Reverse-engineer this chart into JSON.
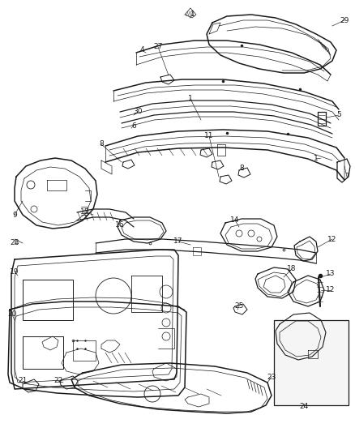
{
  "background_color": "#ffffff",
  "fig_width": 4.38,
  "fig_height": 5.33,
  "dpi": 100,
  "line_color": "#1a1a1a",
  "label_fs": 6.5
}
